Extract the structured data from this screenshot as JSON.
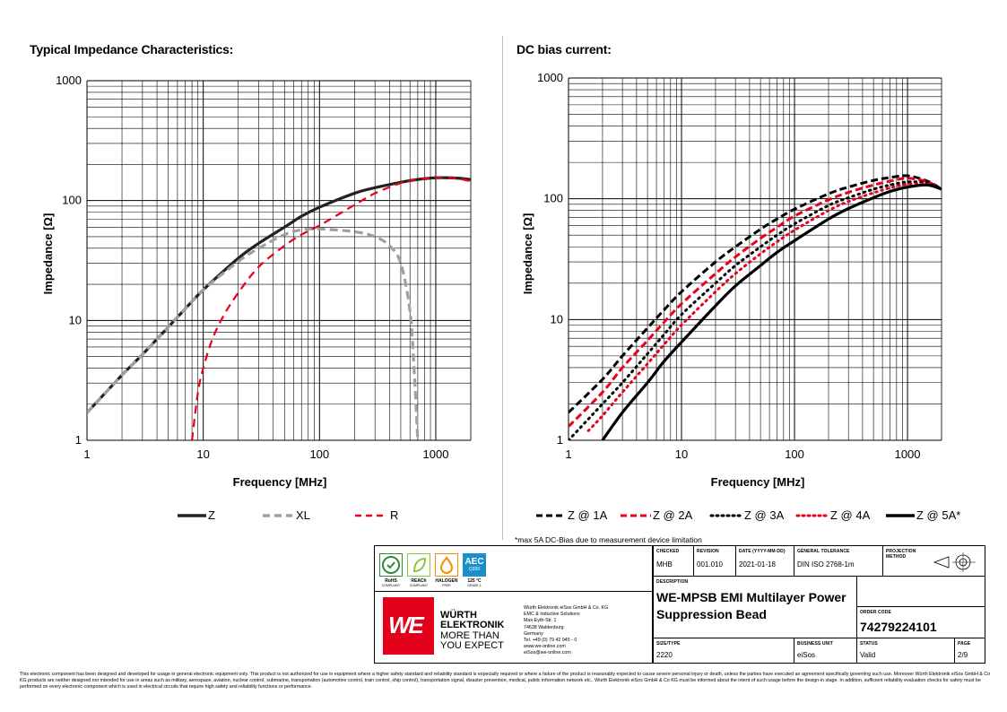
{
  "left_chart": {
    "title": "Typical Impedance Characteristics:",
    "ylabel": "Impedance [Ω]",
    "xlabel": "Frequency [MHz]",
    "xticks": [
      "1",
      "10",
      "100",
      "1000"
    ],
    "yticks": [
      "1",
      "10",
      "100",
      "1000"
    ],
    "legend": [
      {
        "label": "Z",
        "color": "#222222",
        "style": "solid"
      },
      {
        "label": "XL",
        "color": "#a0a0a0",
        "style": "dashed"
      },
      {
        "label": "R",
        "color": "#e8001c",
        "style": "dashed"
      }
    ]
  },
  "right_chart": {
    "title": "DC bias current:",
    "ylabel": "Impedance [Ω]",
    "xlabel": "Frequency [MHz]",
    "xticks": [
      "1",
      "10",
      "100",
      "1000"
    ],
    "yticks": [
      "1",
      "10",
      "100",
      "1000"
    ],
    "legend": [
      {
        "label": "Z @ 1A",
        "color": "#000000",
        "style": "dashed"
      },
      {
        "label": "Z @ 2A",
        "color": "#e8001c",
        "style": "dashed"
      },
      {
        "label": "Z @ 3A",
        "color": "#000000",
        "style": "dotted"
      },
      {
        "label": "Z @ 4A",
        "color": "#e8001c",
        "style": "dotted"
      },
      {
        "label": "Z @ 5A*",
        "color": "#000000",
        "style": "solid"
      }
    ],
    "footnote": "*max 5A DC-Bias due to measurement device limitation"
  },
  "chart_data": [
    {
      "type": "line",
      "title": "Typical Impedance Characteristics:",
      "xlabel": "Frequency [MHz]",
      "ylabel": "Impedance [Ω]",
      "xscale": "log",
      "yscale": "log",
      "xlim": [
        1,
        2000
      ],
      "ylim": [
        1,
        1000
      ],
      "grid": true,
      "legend_position": "bottom",
      "series": [
        {
          "name": "Z",
          "x": [
            1,
            2,
            3,
            5,
            7,
            10,
            20,
            30,
            50,
            70,
            100,
            200,
            300,
            500,
            700,
            1000,
            1500,
            2000
          ],
          "y": [
            1.7,
            3.5,
            5.2,
            8.8,
            12.5,
            18,
            33,
            44,
            60,
            74,
            88,
            115,
            128,
            142,
            150,
            155,
            154,
            150
          ]
        },
        {
          "name": "XL",
          "x": [
            1,
            2,
            3,
            5,
            7,
            10,
            20,
            30,
            50,
            70,
            100,
            200,
            300,
            400,
            500,
            600,
            650,
            700
          ],
          "y": [
            1.7,
            3.5,
            5.2,
            8.8,
            12.5,
            18,
            31,
            40,
            52,
            57,
            58,
            55,
            50,
            42,
            30,
            12,
            4,
            1
          ]
        },
        {
          "name": "R",
          "x": [
            8,
            9,
            10,
            12,
            15,
            20,
            30,
            50,
            70,
            100,
            200,
            300,
            500,
            700,
            1000,
            1500,
            2000
          ],
          "y": [
            1,
            2.5,
            4,
            7,
            11,
            17,
            28,
            42,
            52,
            62,
            92,
            115,
            140,
            150,
            155,
            153,
            145
          ]
        }
      ]
    },
    {
      "type": "line",
      "title": "DC bias current:",
      "xlabel": "Frequency [MHz]",
      "ylabel": "Impedance [Ω]",
      "xscale": "log",
      "yscale": "log",
      "xlim": [
        1,
        2000
      ],
      "ylim": [
        1,
        1000
      ],
      "grid": true,
      "legend_position": "bottom",
      "series": [
        {
          "name": "Z @ 1A",
          "x": [
            1,
            2,
            3,
            5,
            7,
            10,
            20,
            30,
            50,
            70,
            100,
            200,
            300,
            500,
            700,
            1000,
            1500,
            2000
          ],
          "y": [
            1.7,
            3.2,
            5,
            8.5,
            12,
            17,
            30,
            40,
            56,
            68,
            82,
            110,
            125,
            142,
            150,
            155,
            140,
            120
          ]
        },
        {
          "name": "Z @ 2A",
          "x": [
            1,
            2,
            3,
            5,
            7,
            10,
            20,
            30,
            50,
            70,
            100,
            200,
            300,
            500,
            700,
            1000,
            1500,
            2000
          ],
          "y": [
            1.3,
            2.5,
            4,
            6.7,
            9.5,
            13.5,
            24,
            33,
            47,
            58,
            72,
            98,
            113,
            130,
            140,
            148,
            138,
            120
          ]
        },
        {
          "name": "Z @ 3A",
          "x": [
            1,
            2,
            3,
            5,
            7,
            10,
            20,
            30,
            50,
            70,
            100,
            200,
            300,
            500,
            700,
            1000,
            1500,
            2000
          ],
          "y": [
            1,
            2,
            3,
            5.2,
            7.5,
            11,
            20,
            28,
            40,
            50,
            62,
            88,
            102,
            120,
            130,
            138,
            135,
            120
          ]
        },
        {
          "name": "Z @ 4A",
          "x": [
            1.5,
            2,
            3,
            5,
            7,
            10,
            20,
            30,
            50,
            70,
            100,
            200,
            300,
            500,
            700,
            1000,
            1500,
            2000
          ],
          "y": [
            1.2,
            1.6,
            2.5,
            4.3,
            6.2,
            9,
            17,
            24,
            35,
            44,
            55,
            80,
            95,
            112,
            123,
            132,
            132,
            120
          ]
        },
        {
          "name": "Z @ 5A*",
          "x": [
            2,
            3,
            5,
            7,
            10,
            20,
            30,
            50,
            70,
            100,
            200,
            300,
            500,
            700,
            1000,
            1500,
            2000
          ],
          "y": [
            1,
            1.7,
            3,
            4.5,
            6.5,
            13,
            19,
            28,
            36,
            45,
            68,
            83,
            102,
            115,
            125,
            130,
            120
          ]
        }
      ]
    }
  ],
  "titleblock": {
    "checked_label": "CHECKED",
    "checked": "MHB",
    "revision_label": "REVISION",
    "revision": "001.010",
    "date_label": "DATE (YYYY-MM-DD)",
    "date": "2021-01-18",
    "tolerance_label": "GENERAL TOLERANCE",
    "tolerance": "DIN ISO 2768-1m",
    "projection_label": "PROJECTION METHOD",
    "description_label": "DESCRIPTION",
    "description_line1": "WE-MPSB EMI Multilayer Power",
    "description_line2": "Suppression Bead",
    "order_code_label": "ORDER CODE",
    "order_code": "74279224101",
    "size_label": "SIZE/TYPE",
    "size": "2220",
    "business_unit_label": "BUSINESS UNIT",
    "business_unit": "eiSos",
    "status_label": "STATUS",
    "status": "Valid",
    "page_label": "PAGE",
    "page": "2/9"
  },
  "badges": [
    {
      "title": "RoHS",
      "sub": "COMPLIANT",
      "color": "#2e8b3a"
    },
    {
      "title": "REACh",
      "sub": "COMPLIANT",
      "color": "#8cc63f"
    },
    {
      "title": "HALOGEN",
      "sub": "FREE",
      "color": "#f29100"
    },
    {
      "title": "125 °C",
      "sub": "GRADE 1",
      "color": "#1a8fc9",
      "box": "AEC",
      "boxsub": "Q200"
    }
  ],
  "company": {
    "logo": "WE",
    "name1": "WÜRTH",
    "name2": "ELEKTRONIK",
    "slogan1": "MORE THAN",
    "slogan2": "YOU EXPECT",
    "address": [
      "Würth Elektronik eiSos GmbH & Co. KG",
      "EMC & Inductive Solutions",
      "Max-Eyth-Str. 1",
      "74638 Waldenburg",
      "Germany",
      "Tel. +49 (0) 79 42 945 - 0",
      "www.we-online.com",
      "eiSos@we-online.com"
    ]
  },
  "disclaimer": "This electronic component has been designed and developed for usage in general electronic equipment only. This product is not authorized for use in equipment where a higher safety standard and reliability standard is especially required or where a failure of the product is reasonably expected to cause severe personal injury or death, unless the parties have executed an agreement specifically governing such use. Moreover Würth Elektronik eiSos GmbH & Co KG products are neither designed nor intended for use in areas such as military, aerospace, aviation, nuclear control, submarine, transportation (automotive control, train control, ship control), transportation signal, disaster prevention, medical, public information network etc.. Würth Elektronik eiSos GmbH & Co KG must be informed about the intent of such usage before the design-in stage. In addition, sufficient reliability evaluation checks for safety must be performed on every electronic component which is used in electrical circuits that require high safety and reliability functions or performance."
}
